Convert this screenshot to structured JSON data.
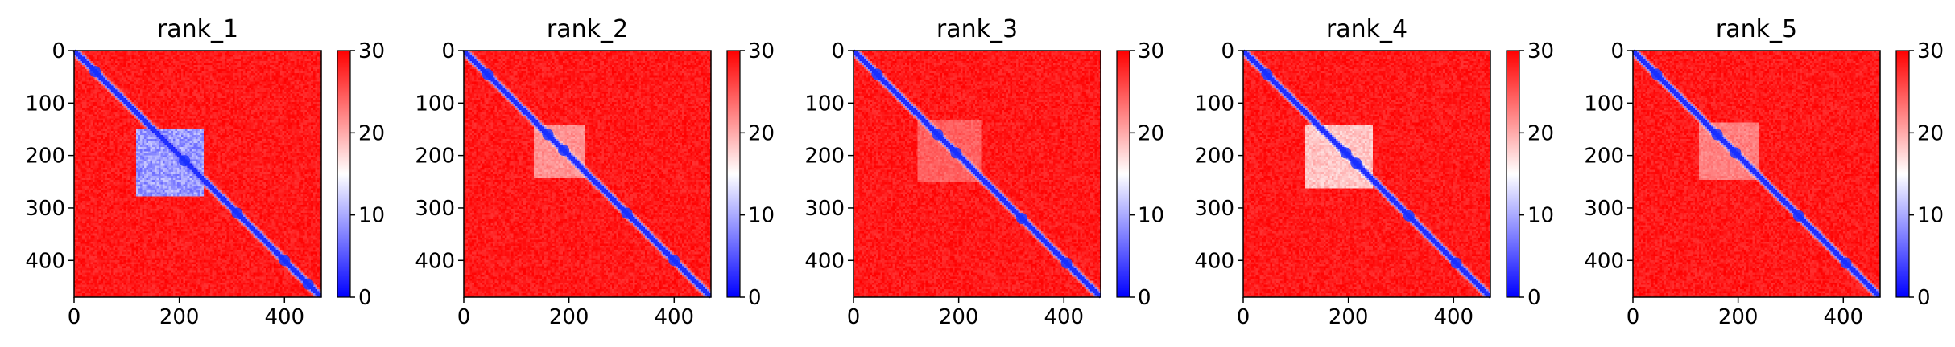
{
  "chart_data": [
    {
      "type": "heatmap",
      "title": "rank_1",
      "x_ticks": [
        "0",
        "200",
        "400"
      ],
      "y_ticks": [
        "0",
        "100",
        "200",
        "300",
        "400"
      ],
      "xlim": [
        0,
        470
      ],
      "ylim": [
        470,
        0
      ],
      "colorbar": {
        "ticks": [
          "0",
          "10",
          "20",
          "30"
        ],
        "range": [
          0,
          30
        ],
        "colors": [
          "#0000ff",
          "#ffffff",
          "#ff0000"
        ]
      },
      "diagonal_blobs": [
        [
          40,
          0.8
        ],
        [
          210,
          0.8
        ],
        [
          310,
          0.8
        ],
        [
          400,
          0.8
        ],
        [
          445,
          0.8
        ]
      ],
      "low_blocks": [
        {
          "x": [
            115,
            245
          ],
          "y": [
            145,
            275
          ],
          "value": 5,
          "strength": 0.95
        }
      ]
    },
    {
      "type": "heatmap",
      "title": "rank_2",
      "x_ticks": [
        "0",
        "200",
        "400"
      ],
      "y_ticks": [
        "0",
        "100",
        "200",
        "300",
        "400"
      ],
      "xlim": [
        0,
        470
      ],
      "ylim": [
        470,
        0
      ],
      "colorbar": {
        "ticks": [
          "0",
          "10",
          "20",
          "30"
        ],
        "range": [
          0,
          30
        ],
        "colors": [
          "#0000ff",
          "#ffffff",
          "#ff0000"
        ]
      },
      "diagonal_blobs": [
        [
          45,
          0.8
        ],
        [
          160,
          0.8
        ],
        [
          190,
          0.8
        ],
        [
          310,
          0.8
        ],
        [
          400,
          0.8
        ]
      ],
      "low_blocks": [
        {
          "x": [
            130,
            230
          ],
          "y": [
            140,
            240
          ],
          "value": 15,
          "strength": 0.6
        }
      ]
    },
    {
      "type": "heatmap",
      "title": "rank_3",
      "x_ticks": [
        "0",
        "200",
        "400"
      ],
      "y_ticks": [
        "0",
        "100",
        "200",
        "300",
        "400"
      ],
      "xlim": [
        0,
        470
      ],
      "ylim": [
        470,
        0
      ],
      "colorbar": {
        "ticks": [
          "0",
          "10",
          "20",
          "30"
        ],
        "range": [
          0,
          30
        ],
        "colors": [
          "#0000ff",
          "#ffffff",
          "#ff0000"
        ]
      },
      "diagonal_blobs": [
        [
          45,
          0.8
        ],
        [
          160,
          0.8
        ],
        [
          195,
          0.8
        ],
        [
          320,
          0.8
        ],
        [
          405,
          0.8
        ]
      ],
      "low_blocks": [
        {
          "x": [
            120,
            240
          ],
          "y": [
            130,
            250
          ],
          "value": 18,
          "strength": 0.45
        }
      ]
    },
    {
      "type": "heatmap",
      "title": "rank_4",
      "x_ticks": [
        "0",
        "200",
        "400"
      ],
      "y_ticks": [
        "0",
        "100",
        "200",
        "300",
        "400"
      ],
      "xlim": [
        0,
        470
      ],
      "ylim": [
        470,
        0
      ],
      "colorbar": {
        "ticks": [
          "0",
          "10",
          "20",
          "30"
        ],
        "range": [
          0,
          30
        ],
        "colors": [
          "#0000ff",
          "#ffffff",
          "#ff0000"
        ]
      },
      "diagonal_blobs": [
        [
          45,
          0.8
        ],
        [
          195,
          0.8
        ],
        [
          215,
          0.8
        ],
        [
          315,
          0.8
        ],
        [
          405,
          0.8
        ]
      ],
      "low_blocks": [
        {
          "x": [
            115,
            245
          ],
          "y": [
            140,
            260
          ],
          "value": 12,
          "strength": 0.7
        }
      ]
    },
    {
      "type": "heatmap",
      "title": "rank_5",
      "x_ticks": [
        "0",
        "200",
        "400"
      ],
      "y_ticks": [
        "0",
        "100",
        "200",
        "300",
        "400"
      ],
      "xlim": [
        0,
        470
      ],
      "ylim": [
        470,
        0
      ],
      "colorbar": {
        "ticks": [
          "0",
          "10",
          "20",
          "30"
        ],
        "range": [
          0,
          30
        ],
        "colors": [
          "#0000ff",
          "#ffffff",
          "#ff0000"
        ]
      },
      "diagonal_blobs": [
        [
          45,
          0.8
        ],
        [
          160,
          0.8
        ],
        [
          195,
          0.8
        ],
        [
          315,
          0.8
        ],
        [
          405,
          0.8
        ]
      ],
      "low_blocks": [
        {
          "x": [
            125,
            235
          ],
          "y": [
            135,
            245
          ],
          "value": 16,
          "strength": 0.55
        }
      ]
    }
  ]
}
